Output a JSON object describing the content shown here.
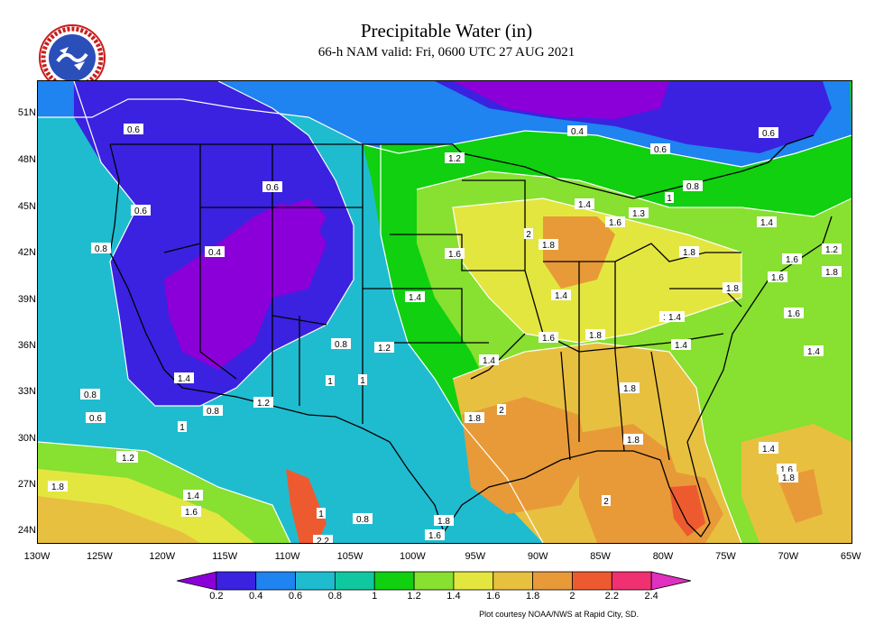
{
  "title": "Precipitable Water (in)",
  "subtitle": "66-h NAM valid: Fri, 0600 UTC 27 AUG 2021",
  "logo_text": "NATIONAL WEATHER SERVICE",
  "credit": "Plot courtesy NOAA/NWS at Rapid City, SD.",
  "lat_labels": [
    "51N",
    "48N",
    "45N",
    "42N",
    "39N",
    "36N",
    "33N",
    "30N",
    "27N",
    "24N"
  ],
  "lon_labels": [
    "130W",
    "125W",
    "120W",
    "115W",
    "110W",
    "105W",
    "100W",
    "95W",
    "90W",
    "85W",
    "80W",
    "75W",
    "70W",
    "65W"
  ],
  "colorbar": {
    "ticks": [
      "0.2",
      "0.4",
      "0.6",
      "0.8",
      "1",
      "1.2",
      "1.4",
      "1.6",
      "1.8",
      "2",
      "2.2",
      "2.4"
    ],
    "colors": [
      "#8b00d8",
      "#3a22e0",
      "#1f83f0",
      "#1fbcd0",
      "#10c8a0",
      "#10d010",
      "#88e030",
      "#e4e640",
      "#e8c040",
      "#e89a38",
      "#ee5a30",
      "#f03070",
      "#e030c0"
    ]
  },
  "map": {
    "colors": {
      "purple": "#8b00d8",
      "blue": "#3a22e0",
      "lightblue": "#1f83f0",
      "cyan": "#1fbcd0",
      "teal": "#10c8a0",
      "green": "#10d010",
      "lightgreen": "#88e030",
      "yellow": "#e4e640",
      "gold": "#e8c040",
      "orange": "#e89a38",
      "red": "#ee5a30",
      "pink": "#f03070"
    },
    "contour_labels": [
      "0.6",
      "0.6",
      "0.6",
      "0.8",
      "0.4",
      "0.4",
      "0.6",
      "0.8",
      "0.6",
      "1",
      "1.2",
      "1.4",
      "1.6",
      "1.3",
      "1.4",
      "2",
      "1.8",
      "1.6",
      "1.8",
      "1.6",
      "1.2",
      "1.6",
      "1.4",
      "1.4",
      "1.8",
      "1.6",
      "1.8",
      "1.4",
      "1.4",
      "1.6",
      "1.4",
      "1.2",
      "0.8",
      "1",
      "1.4",
      "1.8",
      "2",
      "1.8",
      "1.8",
      "1.4",
      "1.6",
      "1.8",
      "1.6",
      "2",
      "1.2",
      "1",
      "0.8",
      "0.6",
      "1.2",
      "1.4",
      "1.6",
      "1.8",
      "1",
      "0.8",
      "1.8",
      "1.6",
      "2.2",
      "1.4",
      "1.8",
      "1.4",
      "0.8",
      "1.2",
      "1"
    ]
  }
}
